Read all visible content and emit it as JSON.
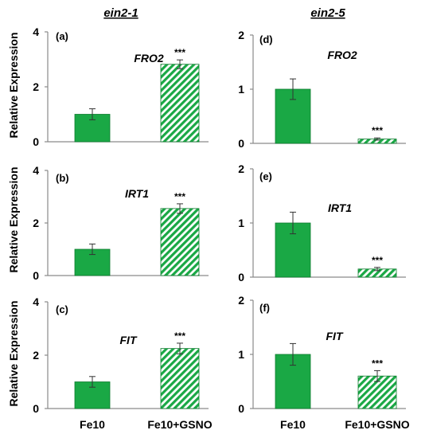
{
  "colors": {
    "bar_solid": "#1aa845",
    "bar_hatch": "#1aa845",
    "bar_edge": "#0d7a2e",
    "axis": "#8a8a8a",
    "error_bar": "#333333",
    "text": "#000000"
  },
  "figure": {
    "column_titles": [
      "ein2-1",
      "ein2-5"
    ],
    "ylabel": "Relative Expression",
    "x_tick_labels": [
      "Fe10",
      "Fe10+GSNO"
    ]
  },
  "chart_data": [
    {
      "type": "bar",
      "panel_label": "(a)",
      "gene": "FRO2",
      "mutant": "ein2-1",
      "categories": [
        "Fe10",
        "Fe10+GSNO"
      ],
      "values": [
        1.0,
        2.82
      ],
      "errors": [
        0.2,
        0.16
      ],
      "significance": [
        "",
        "***"
      ],
      "ylim": [
        0,
        4
      ],
      "yticks": [
        0,
        2,
        4
      ]
    },
    {
      "type": "bar",
      "panel_label": "(b)",
      "gene": "IRT1",
      "mutant": "ein2-1",
      "categories": [
        "Fe10",
        "Fe10+GSNO"
      ],
      "values": [
        1.0,
        2.55
      ],
      "errors": [
        0.2,
        0.18
      ],
      "significance": [
        "",
        "***"
      ],
      "ylim": [
        0,
        4
      ],
      "yticks": [
        0,
        2,
        4
      ]
    },
    {
      "type": "bar",
      "panel_label": "(c)",
      "gene": "FIT",
      "mutant": "ein2-1",
      "categories": [
        "Fe10",
        "Fe10+GSNO"
      ],
      "values": [
        1.0,
        2.25
      ],
      "errors": [
        0.2,
        0.2
      ],
      "significance": [
        "",
        "***"
      ],
      "ylim": [
        0,
        4
      ],
      "yticks": [
        0,
        2,
        4
      ]
    },
    {
      "type": "bar",
      "panel_label": "(d)",
      "gene": "FRO2",
      "mutant": "ein2-5",
      "categories": [
        "Fe10",
        "Fe10+GSNO"
      ],
      "values": [
        1.0,
        0.08
      ],
      "errors": [
        0.19,
        0.02
      ],
      "significance": [
        "",
        "***"
      ],
      "ylim": [
        0,
        2
      ],
      "yticks": [
        0,
        1,
        2
      ]
    },
    {
      "type": "bar",
      "panel_label": "(e)",
      "gene": "IRT1",
      "mutant": "ein2-5",
      "categories": [
        "Fe10",
        "Fe10+GSNO"
      ],
      "values": [
        1.0,
        0.15
      ],
      "errors": [
        0.2,
        0.03
      ],
      "significance": [
        "",
        "***"
      ],
      "ylim": [
        0,
        2
      ],
      "yticks": [
        0,
        1,
        2
      ]
    },
    {
      "type": "bar",
      "panel_label": "(f)",
      "gene": "FIT",
      "mutant": "ein2-5",
      "categories": [
        "Fe10",
        "Fe10+GSNO"
      ],
      "values": [
        1.0,
        0.6
      ],
      "errors": [
        0.2,
        0.1
      ],
      "significance": [
        "",
        "***"
      ],
      "ylim": [
        0,
        2
      ],
      "yticks": [
        0,
        1,
        2
      ]
    }
  ]
}
